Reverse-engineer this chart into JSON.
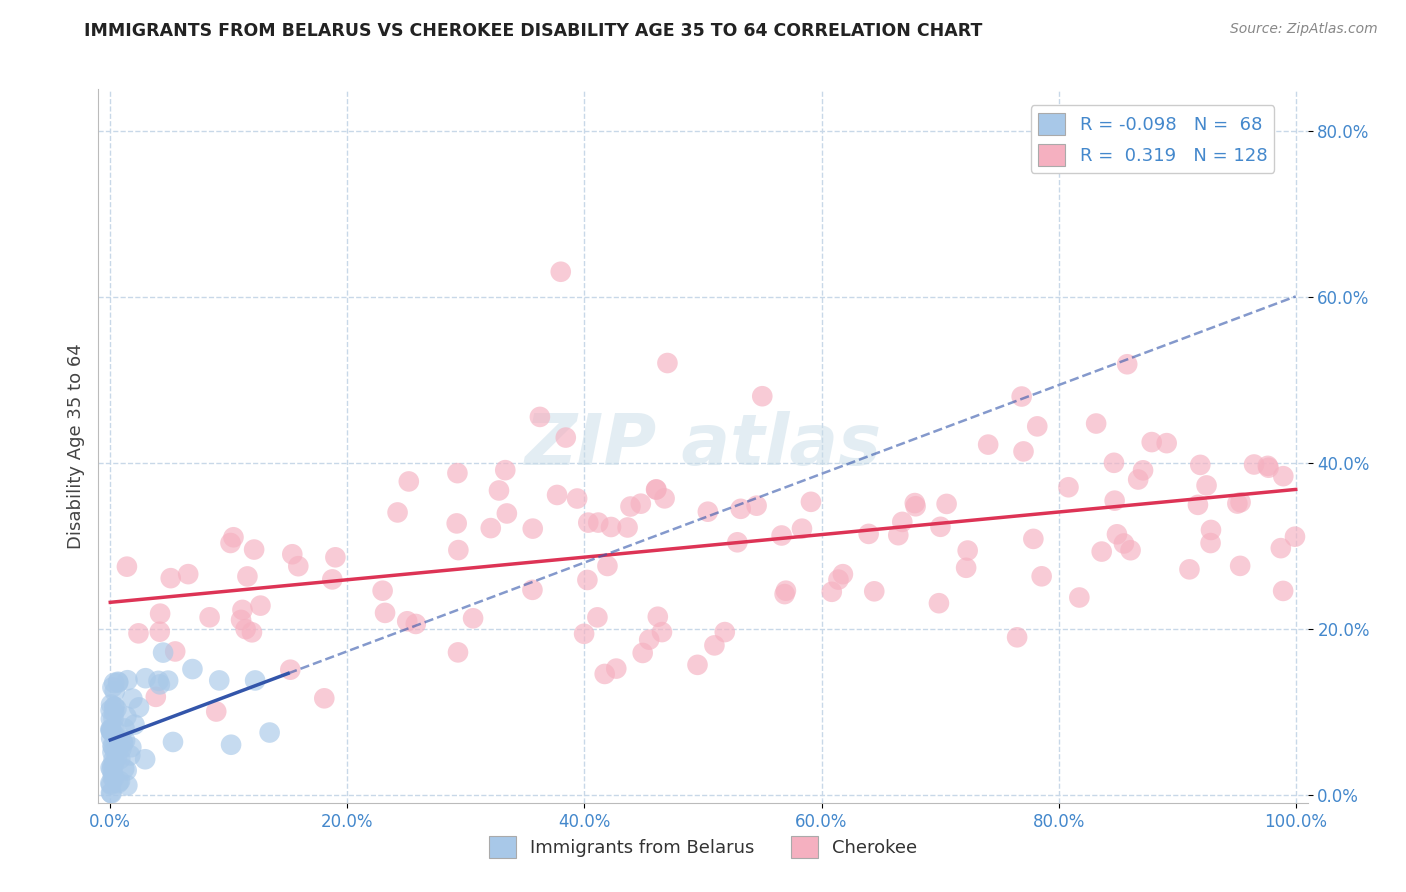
{
  "title": "IMMIGRANTS FROM BELARUS VS CHEROKEE DISABILITY AGE 35 TO 64 CORRELATION CHART",
  "source": "Source: ZipAtlas.com",
  "ylabel": "Disability Age 35 to 64",
  "xlim": [
    -1,
    101
  ],
  "ylim": [
    -1,
    85
  ],
  "xtick_positions": [
    0,
    20,
    40,
    60,
    80,
    100
  ],
  "ytick_positions": [
    0,
    20,
    40,
    60,
    80
  ],
  "xticklabels": [
    "0.0%",
    "20.0%",
    "40.0%",
    "60.0%",
    "80.0%",
    "100.0%"
  ],
  "yticklabels": [
    "0.0%",
    "20.0%",
    "40.0%",
    "60.0%",
    "80.0%"
  ],
  "legend_r1_val": "-0.098",
  "legend_n1_val": "68",
  "legend_r2_val": "0.319",
  "legend_n2_val": "128",
  "blue_fill": "#a8c8e8",
  "pink_fill": "#f5b0c0",
  "blue_line_color": "#3355aa",
  "pink_line_color": "#dd3355",
  "grid_color": "#c8d8e8",
  "tick_color": "#4488cc",
  "title_color": "#222222",
  "axis_label_color": "#444444",
  "source_color": "#888888",
  "watermark_color": "#c8dce8",
  "background_color": "#ffffff"
}
